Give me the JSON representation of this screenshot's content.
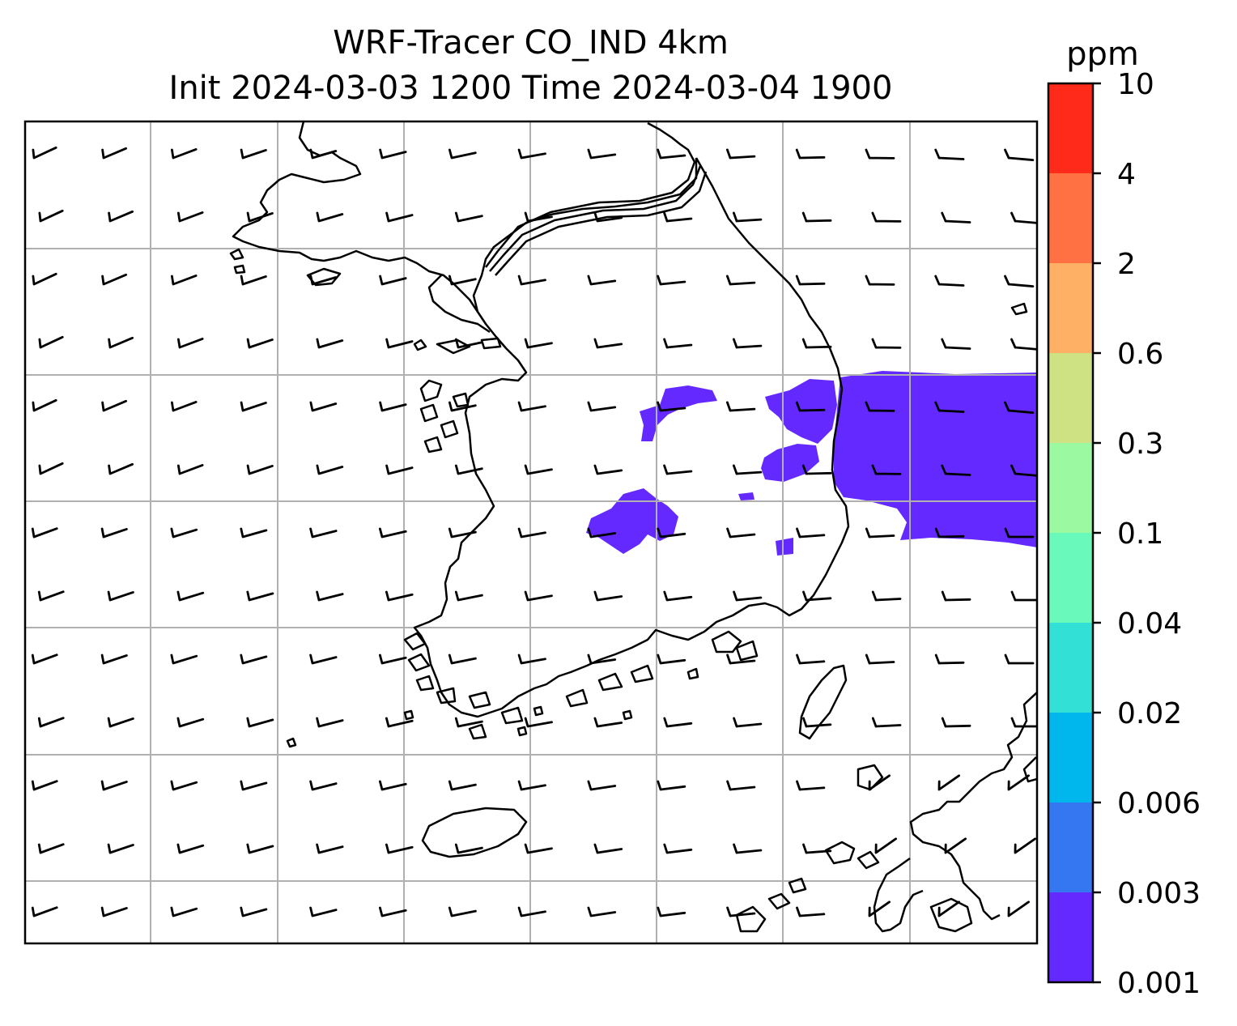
{
  "title_line1": "WRF-Tracer CO_IND 4km",
  "title_line2": "Init 2024-03-03 1200 Time 2024-03-04 1900",
  "colorbar": {
    "unit": "ppm",
    "levels": [
      "0.001",
      "0.003",
      "0.006",
      "0.02",
      "0.04",
      "0.1",
      "0.3",
      "0.6",
      "2",
      "4",
      "10"
    ],
    "colors": [
      "#6429ff",
      "#3577f0",
      "#00b7ed",
      "#33e0d6",
      "#69f9bb",
      "#9bfaa1",
      "#cfe283",
      "#feb164",
      "#ff7143",
      "#ff2a1a"
    ]
  },
  "map": {
    "plume_color": "#6429ff",
    "gridline_color": "#b0b0b0",
    "coastline_color": "#000000",
    "wind_barb_color": "#000000"
  }
}
